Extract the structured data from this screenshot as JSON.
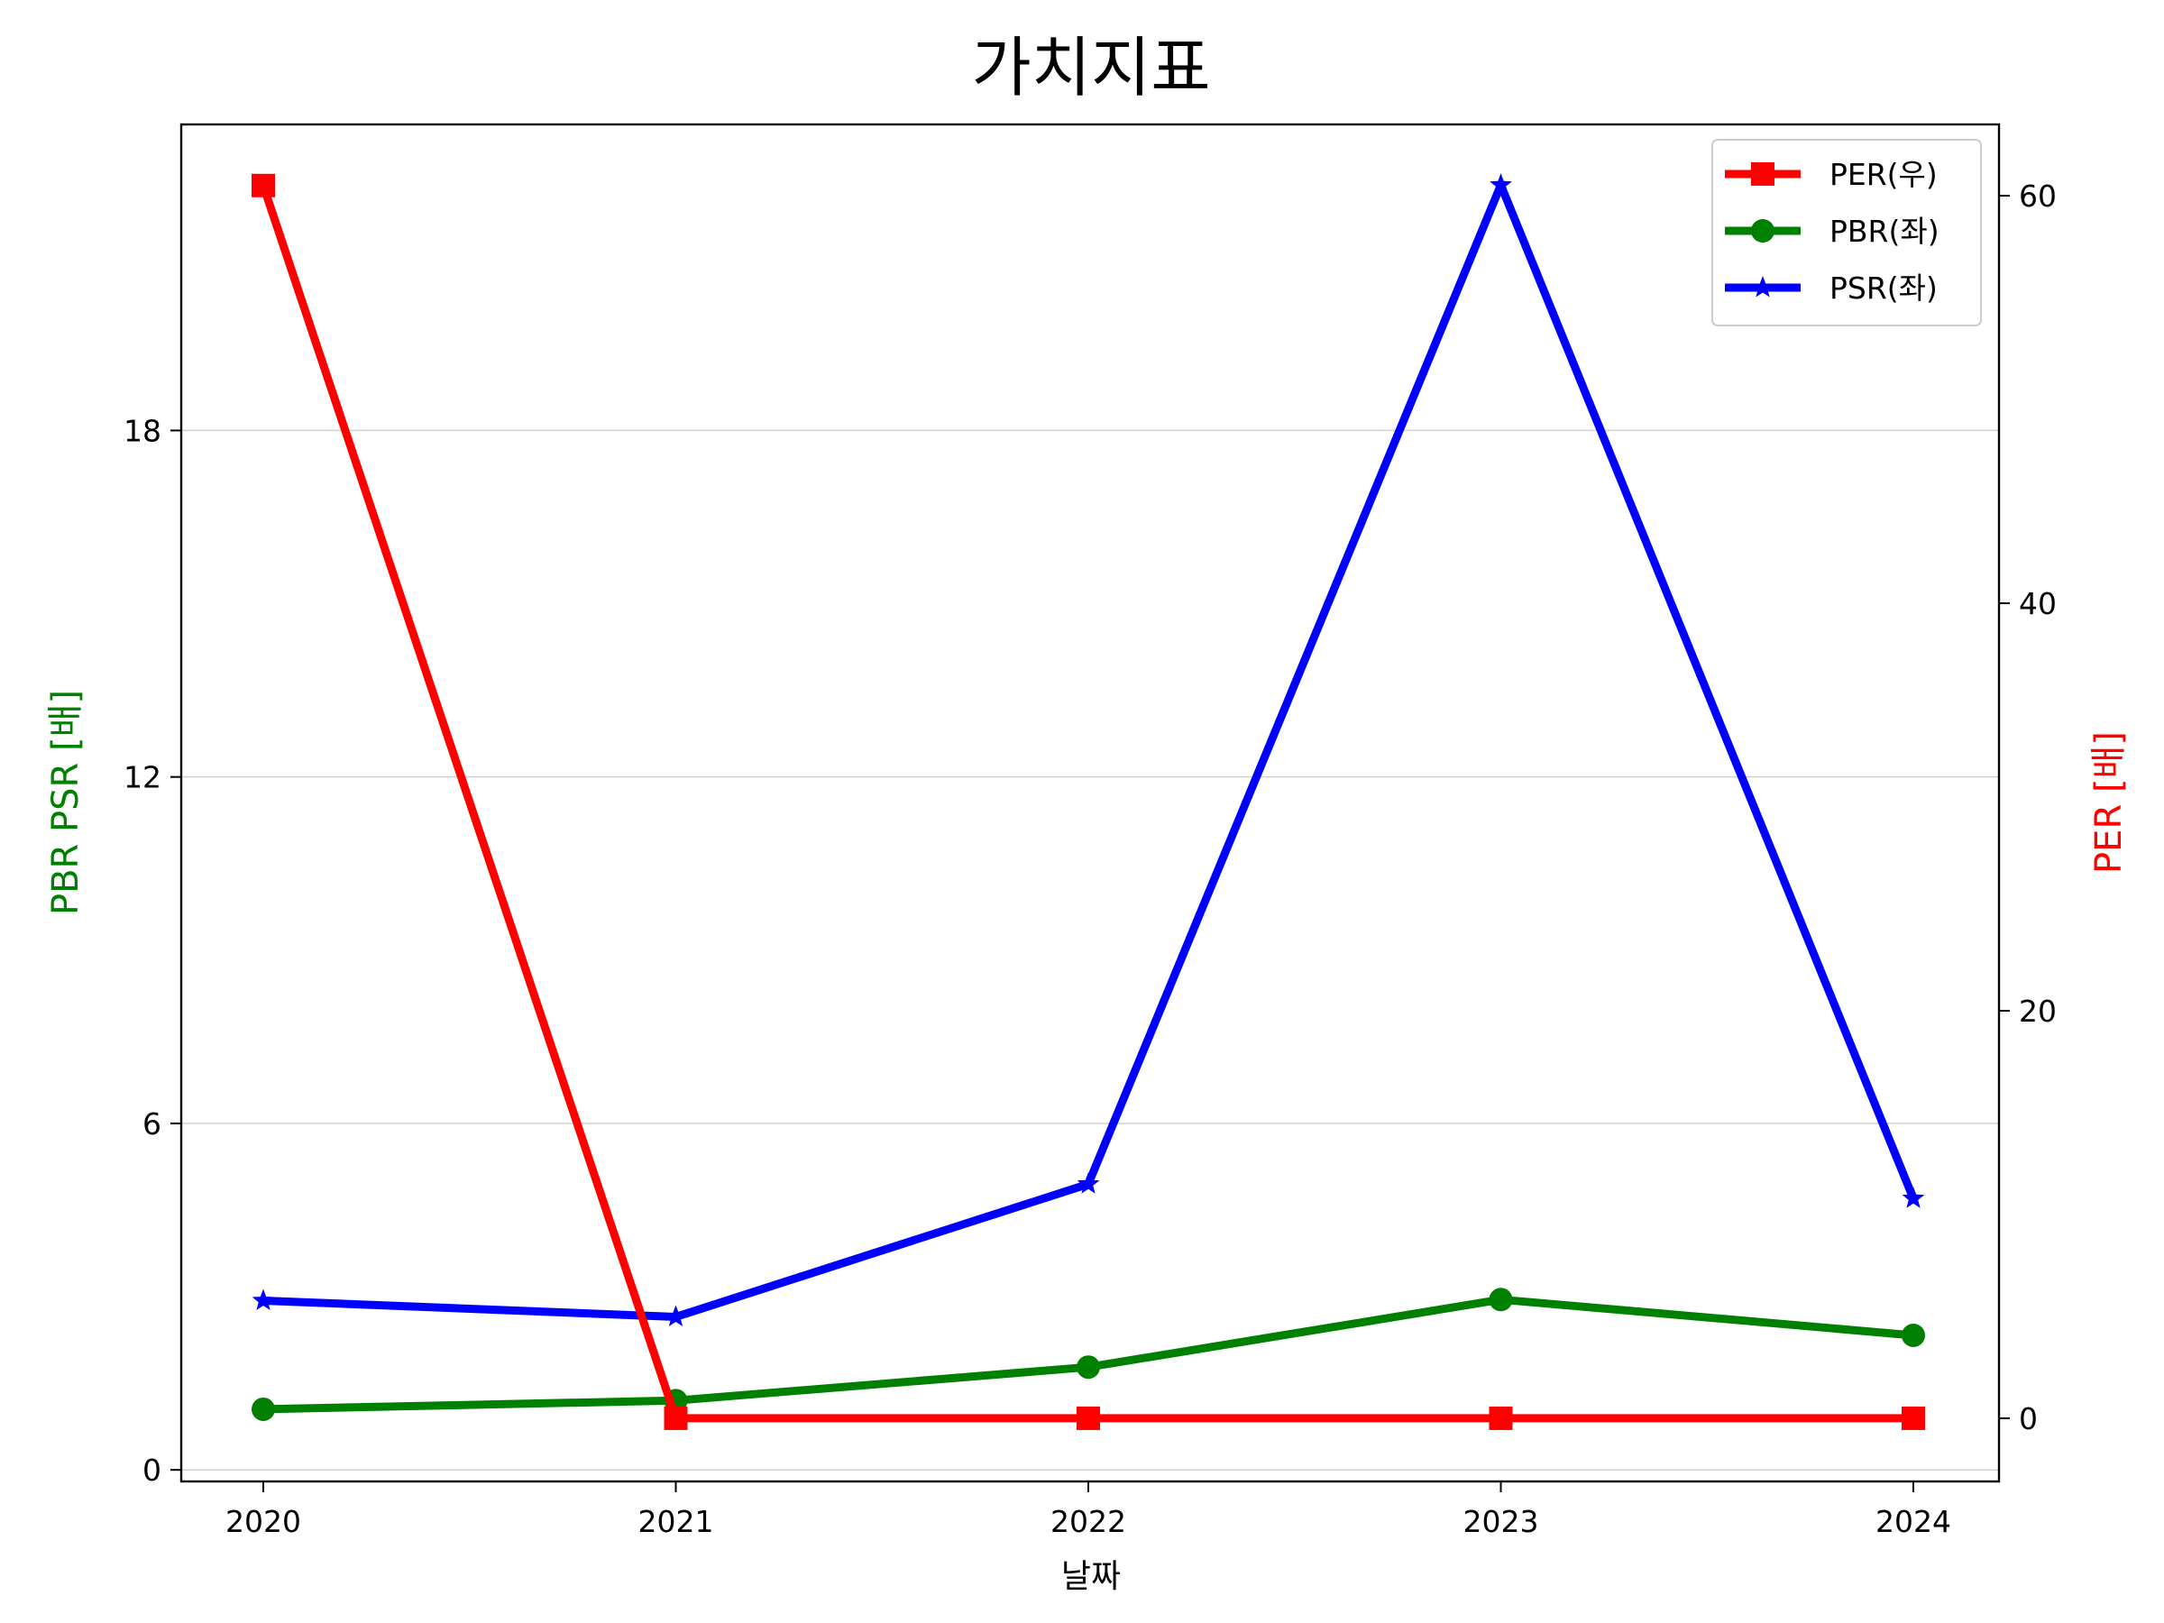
{
  "chart_data": {
    "type": "line",
    "title": "가치지표",
    "xlabel": "날짜",
    "ylabel_left": "PBR PSR [배]",
    "ylabel_right": "PER [배]",
    "ylabel_left_color": "#008000",
    "ylabel_right_color": "#ff0000",
    "categories": [
      "2020",
      "2021",
      "2022",
      "2023",
      "2024"
    ],
    "y_left": {
      "lim": [
        -0.2,
        23.3
      ],
      "ticks": [
        0,
        6,
        12,
        18
      ]
    },
    "y_right": {
      "lim": [
        -3.1,
        63.5
      ],
      "ticks": [
        0,
        20,
        40,
        60
      ]
    },
    "grid": "horizontal (left axis)",
    "legend_position": "top-right",
    "series": [
      {
        "name": "PER(우)",
        "axis": "right",
        "color": "#ff0000",
        "marker": "square",
        "values": [
          60.5,
          0.0,
          0.0,
          0.0,
          0.0
        ]
      },
      {
        "name": "PBR(좌)",
        "axis": "left",
        "color": "#008000",
        "marker": "circle",
        "values": [
          1.05,
          1.2,
          1.78,
          2.95,
          2.33
        ]
      },
      {
        "name": "PSR(좌)",
        "axis": "left",
        "color": "#0000ff",
        "marker": "star",
        "values": [
          2.93,
          2.65,
          4.95,
          22.25,
          4.7
        ]
      }
    ]
  }
}
